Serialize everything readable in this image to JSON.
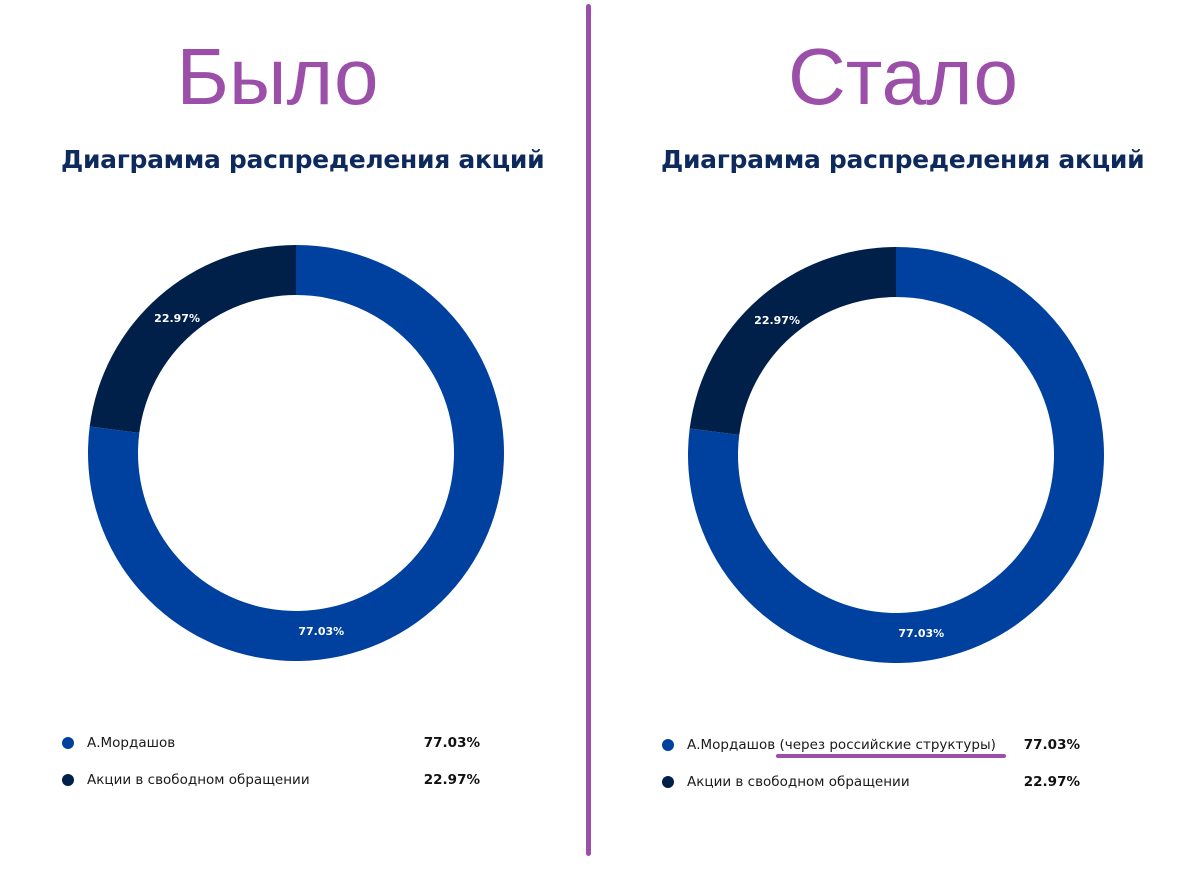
{
  "colors": {
    "accent_purple": "#9b4fa8",
    "title_navy": "#0e2a5c",
    "series_blue": "#0041a0",
    "series_navy": "#00204a"
  },
  "left": {
    "caption": "Было",
    "title": "Диаграмма распределения акций",
    "legend": [
      {
        "label": "А.Мордашов",
        "value": "77.03%"
      },
      {
        "label": "Акции в свободном обращении",
        "value": "22.97%"
      }
    ]
  },
  "right": {
    "caption": "Стало",
    "title": "Диаграмма распределения акций",
    "legend": [
      {
        "label": "А.Мордашов (через российские структуры)",
        "value": "77.03%"
      },
      {
        "label": "Акции в свободном обращении",
        "value": "22.97%"
      }
    ]
  },
  "chart_data": [
    {
      "type": "pie",
      "title": "Диаграмма распределения акций",
      "labels": [
        "А.Мордашов",
        "Акции в свободном обращении"
      ],
      "values": [
        77.03,
        22.97
      ],
      "data_labels": [
        "77.03%",
        "22.97%"
      ],
      "colors": [
        "#0041a0",
        "#00204a"
      ],
      "donut": true,
      "start": "top, clockwise",
      "legend": "bottom"
    },
    {
      "type": "pie",
      "title": "Диаграмма распределения акций",
      "labels": [
        "А.Мордашов (через российские структуры)",
        "Акции в свободном обращении"
      ],
      "values": [
        77.03,
        22.97
      ],
      "data_labels": [
        "77.03%",
        "22.97%"
      ],
      "colors": [
        "#0041a0",
        "#00204a"
      ],
      "donut": true,
      "start": "top, clockwise",
      "legend": "bottom"
    }
  ]
}
